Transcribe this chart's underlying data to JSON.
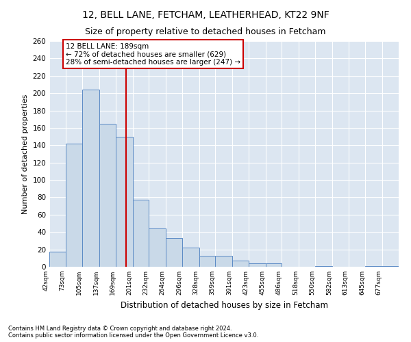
{
  "title": "12, BELL LANE, FETCHAM, LEATHERHEAD, KT22 9NF",
  "subtitle": "Size of property relative to detached houses in Fetcham",
  "xlabel": "Distribution of detached houses by size in Fetcham",
  "ylabel": "Number of detached properties",
  "footnote1": "Contains HM Land Registry data © Crown copyright and database right 2024.",
  "footnote2": "Contains public sector information licensed under the Open Government Licence v3.0.",
  "annotation_title": "12 BELL LANE: 189sqm",
  "annotation_line1": "← 72% of detached houses are smaller (629)",
  "annotation_line2": "28% of semi-detached houses are larger (247) →",
  "property_sqm": 189,
  "bar_color": "#c9d9e8",
  "bar_edge_color": "#5b8ac5",
  "vline_color": "#cc0000",
  "annotation_box_color": "#ffffff",
  "annotation_box_edge": "#cc0000",
  "background_color": "#dce6f1",
  "categories": [
    "42sqm",
    "73sqm",
    "105sqm",
    "137sqm",
    "169sqm",
    "201sqm",
    "232sqm",
    "264sqm",
    "296sqm",
    "328sqm",
    "359sqm",
    "391sqm",
    "423sqm",
    "455sqm",
    "486sqm",
    "518sqm",
    "550sqm",
    "582sqm",
    "613sqm",
    "645sqm",
    "677sqm"
  ],
  "values": [
    17,
    142,
    204,
    165,
    150,
    77,
    44,
    33,
    22,
    13,
    13,
    7,
    4,
    4,
    0,
    0,
    1,
    0,
    0,
    1,
    1
  ],
  "bin_edges": [
    42,
    73,
    105,
    137,
    169,
    201,
    232,
    264,
    296,
    328,
    359,
    391,
    423,
    455,
    486,
    518,
    550,
    582,
    613,
    645,
    677,
    709
  ],
  "ylim": [
    0,
    260
  ],
  "yticks": [
    0,
    20,
    40,
    60,
    80,
    100,
    120,
    140,
    160,
    180,
    200,
    220,
    240,
    260
  ],
  "title_fontsize": 10,
  "subtitle_fontsize": 9
}
